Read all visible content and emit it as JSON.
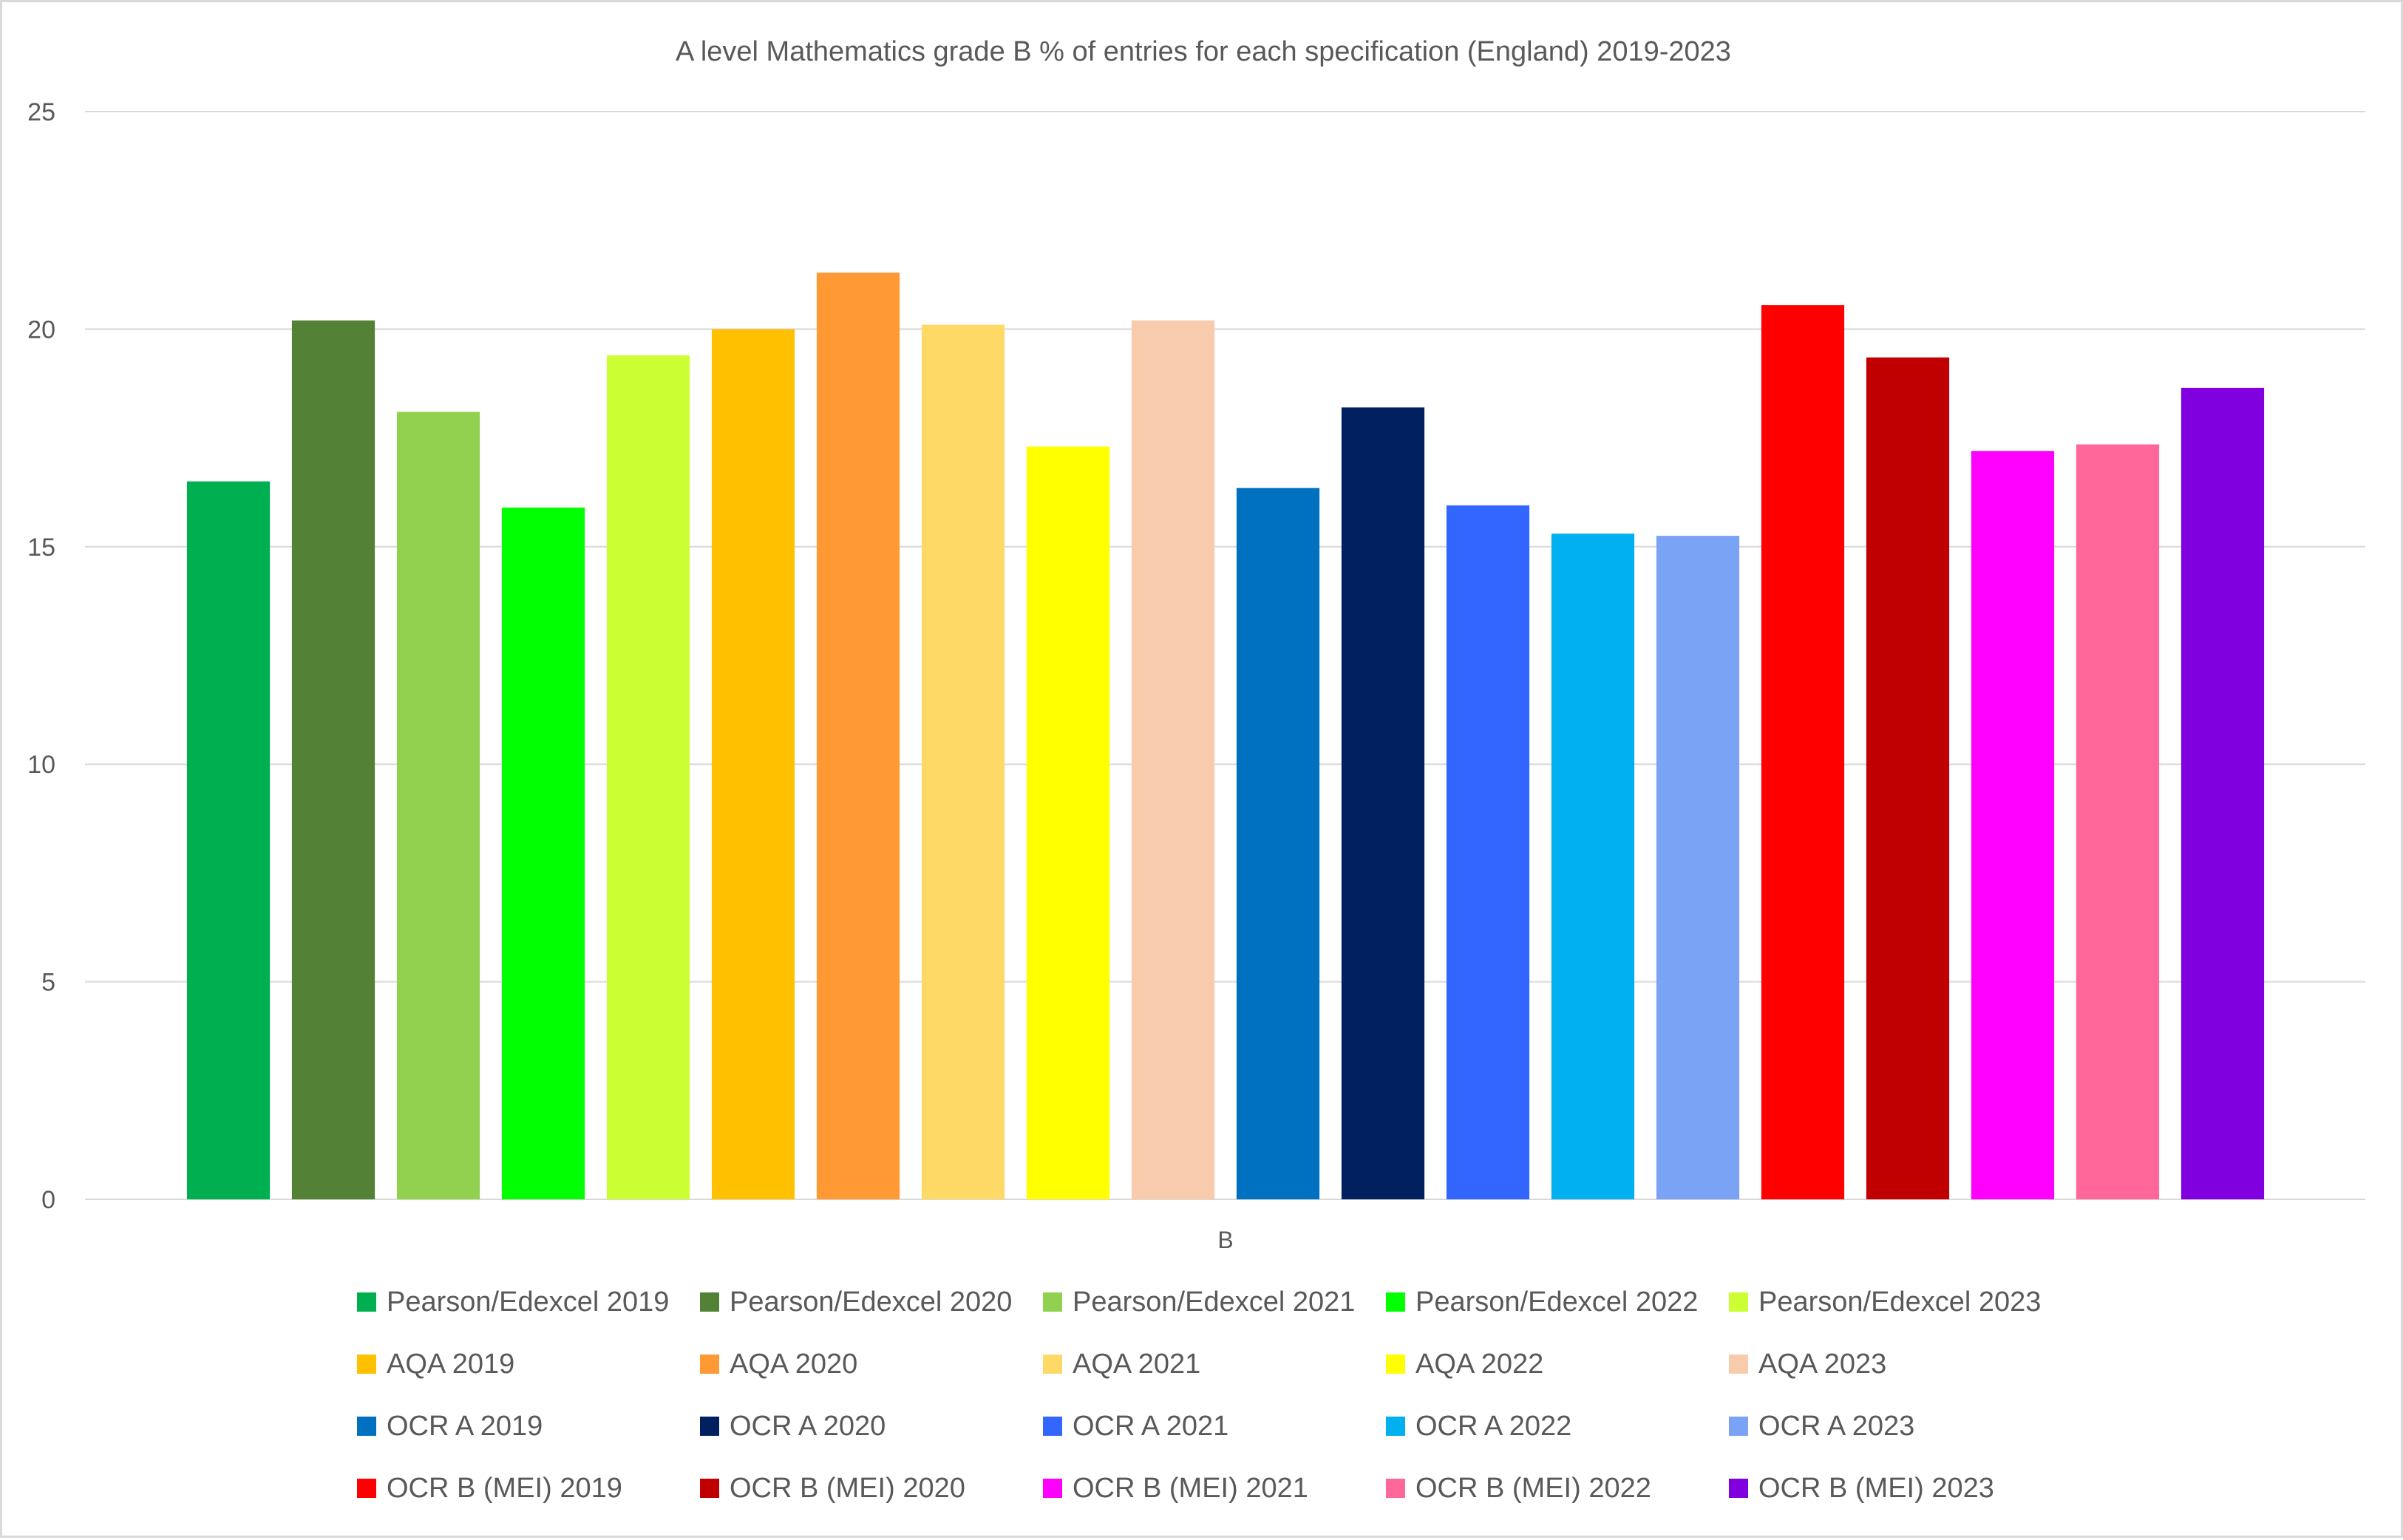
{
  "chart_data": {
    "type": "bar",
    "title": "A level Mathematics grade B % of entries for each specification (England) 2019-2023",
    "categories": [
      "B"
    ],
    "xlabel": "",
    "ylabel": "",
    "ylim": [
      0,
      25
    ],
    "yticks": [
      "0",
      "5",
      "10",
      "15",
      "20",
      "25"
    ],
    "grid": true,
    "legend_position": "bottom",
    "series": [
      {
        "name": "Pearson/Edexcel 2019",
        "color": "#00B050",
        "values": [
          16.5
        ]
      },
      {
        "name": "Pearson/Edexcel 2020",
        "color": "#538135",
        "values": [
          20.2
        ]
      },
      {
        "name": "Pearson/Edexcel 2021",
        "color": "#92D050",
        "values": [
          18.1
        ]
      },
      {
        "name": "Pearson/Edexcel 2022",
        "color": "#00FF00",
        "values": [
          15.9
        ]
      },
      {
        "name": "Pearson/Edexcel 2023",
        "color": "#CCFF33",
        "values": [
          19.4
        ]
      },
      {
        "name": "AQA 2019",
        "color": "#FFC000",
        "values": [
          20.0
        ]
      },
      {
        "name": "AQA 2020",
        "color": "#FF9933",
        "values": [
          21.3
        ]
      },
      {
        "name": "AQA 2021",
        "color": "#FFD966",
        "values": [
          20.1
        ]
      },
      {
        "name": "AQA 2022",
        "color": "#FFFF00",
        "values": [
          17.3
        ]
      },
      {
        "name": "AQA 2023",
        "color": "#F8CBAD",
        "values": [
          20.2
        ]
      },
      {
        "name": "OCR A 2019",
        "color": "#0070C0",
        "values": [
          16.35
        ]
      },
      {
        "name": "OCR A 2020",
        "color": "#002060",
        "values": [
          18.2
        ]
      },
      {
        "name": "OCR A 2021",
        "color": "#3366FF",
        "values": [
          15.95
        ]
      },
      {
        "name": "OCR A 2022",
        "color": "#00B0F0",
        "values": [
          15.3
        ]
      },
      {
        "name": "OCR A 2023",
        "color": "#7AA3F5",
        "values": [
          15.25
        ]
      },
      {
        "name": "OCR B (MEI) 2019",
        "color": "#FF0000",
        "values": [
          20.55
        ]
      },
      {
        "name": "OCR B (MEI) 2020",
        "color": "#C00000",
        "values": [
          19.35
        ]
      },
      {
        "name": "OCR B (MEI) 2021",
        "color": "#FF00FF",
        "values": [
          17.2
        ]
      },
      {
        "name": "OCR B (MEI) 2022",
        "color": "#FF6699",
        "values": [
          17.35
        ]
      },
      {
        "name": "OCR B (MEI) 2023",
        "color": "#8000E0",
        "values": [
          18.65
        ]
      }
    ]
  }
}
